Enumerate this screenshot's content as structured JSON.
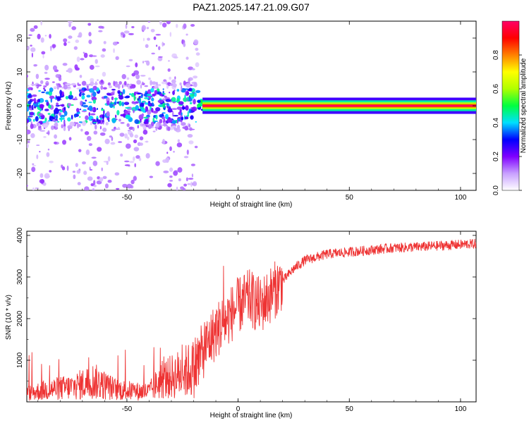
{
  "title": "PAZ1.2025.147.21.09.G07",
  "chart_data": [
    {
      "type": "heatmap",
      "xlabel": "Height of straight line (km)",
      "ylabel": "Frequency (Hz)",
      "xlim": [
        -95,
        107
      ],
      "ylim": [
        -25,
        25
      ],
      "xticks": [
        -50,
        0,
        50,
        100
      ],
      "yticks": [
        -20,
        -10,
        0,
        10,
        20
      ],
      "colorbar": {
        "label": "Normalized spectral amplitude",
        "range": [
          0.0,
          1.0
        ],
        "ticks": [
          0.0,
          0.2,
          0.4,
          0.6,
          0.8
        ],
        "tick_labels": [
          "0.0",
          "0.2",
          "0.4",
          "0.6",
          "0.8"
        ],
        "colors": [
          "#ffffff",
          "#c8a0ff",
          "#7f00ff",
          "#0000ff",
          "#00e0ff",
          "#00ff40",
          "#b0ff00",
          "#ffff00",
          "#ff8000",
          "#ff0000",
          "#ff0066"
        ]
      },
      "features": [
        {
          "region": "below -18 km",
          "x_range": [
            -95,
            -18
          ],
          "freq_range": [
            -25,
            25
          ],
          "description_level": "scattered low amplitude"
        },
        {
          "region": "above -18 km",
          "x_range": [
            -18,
            107
          ],
          "frequency": 0,
          "max_amplitude": 1.0
        }
      ]
    },
    {
      "type": "line",
      "xlabel": "Height of straight line (km)",
      "ylabel": "SNR (10 * v/v)",
      "xlim": [
        -95,
        107
      ],
      "ylim": [
        0,
        4100
      ],
      "xticks": [
        -50,
        0,
        50,
        100
      ],
      "yticks": [
        1000,
        2000,
        3000,
        4000
      ],
      "color": "#ee3333",
      "x": [
        -95,
        -85,
        -75,
        -65,
        -55,
        -45,
        -40,
        -35,
        -30,
        -25,
        -20,
        -15,
        -10,
        -5,
        0,
        5,
        10,
        15,
        20,
        25,
        30,
        40,
        50,
        60,
        70,
        80,
        90,
        100,
        107
      ],
      "y": [
        200,
        300,
        350,
        500,
        300,
        250,
        250,
        500,
        600,
        700,
        800,
        1300,
        1700,
        2000,
        2300,
        2500,
        2300,
        2600,
        2900,
        3200,
        3400,
        3550,
        3600,
        3650,
        3700,
        3720,
        3750,
        3780,
        3800
      ]
    }
  ]
}
